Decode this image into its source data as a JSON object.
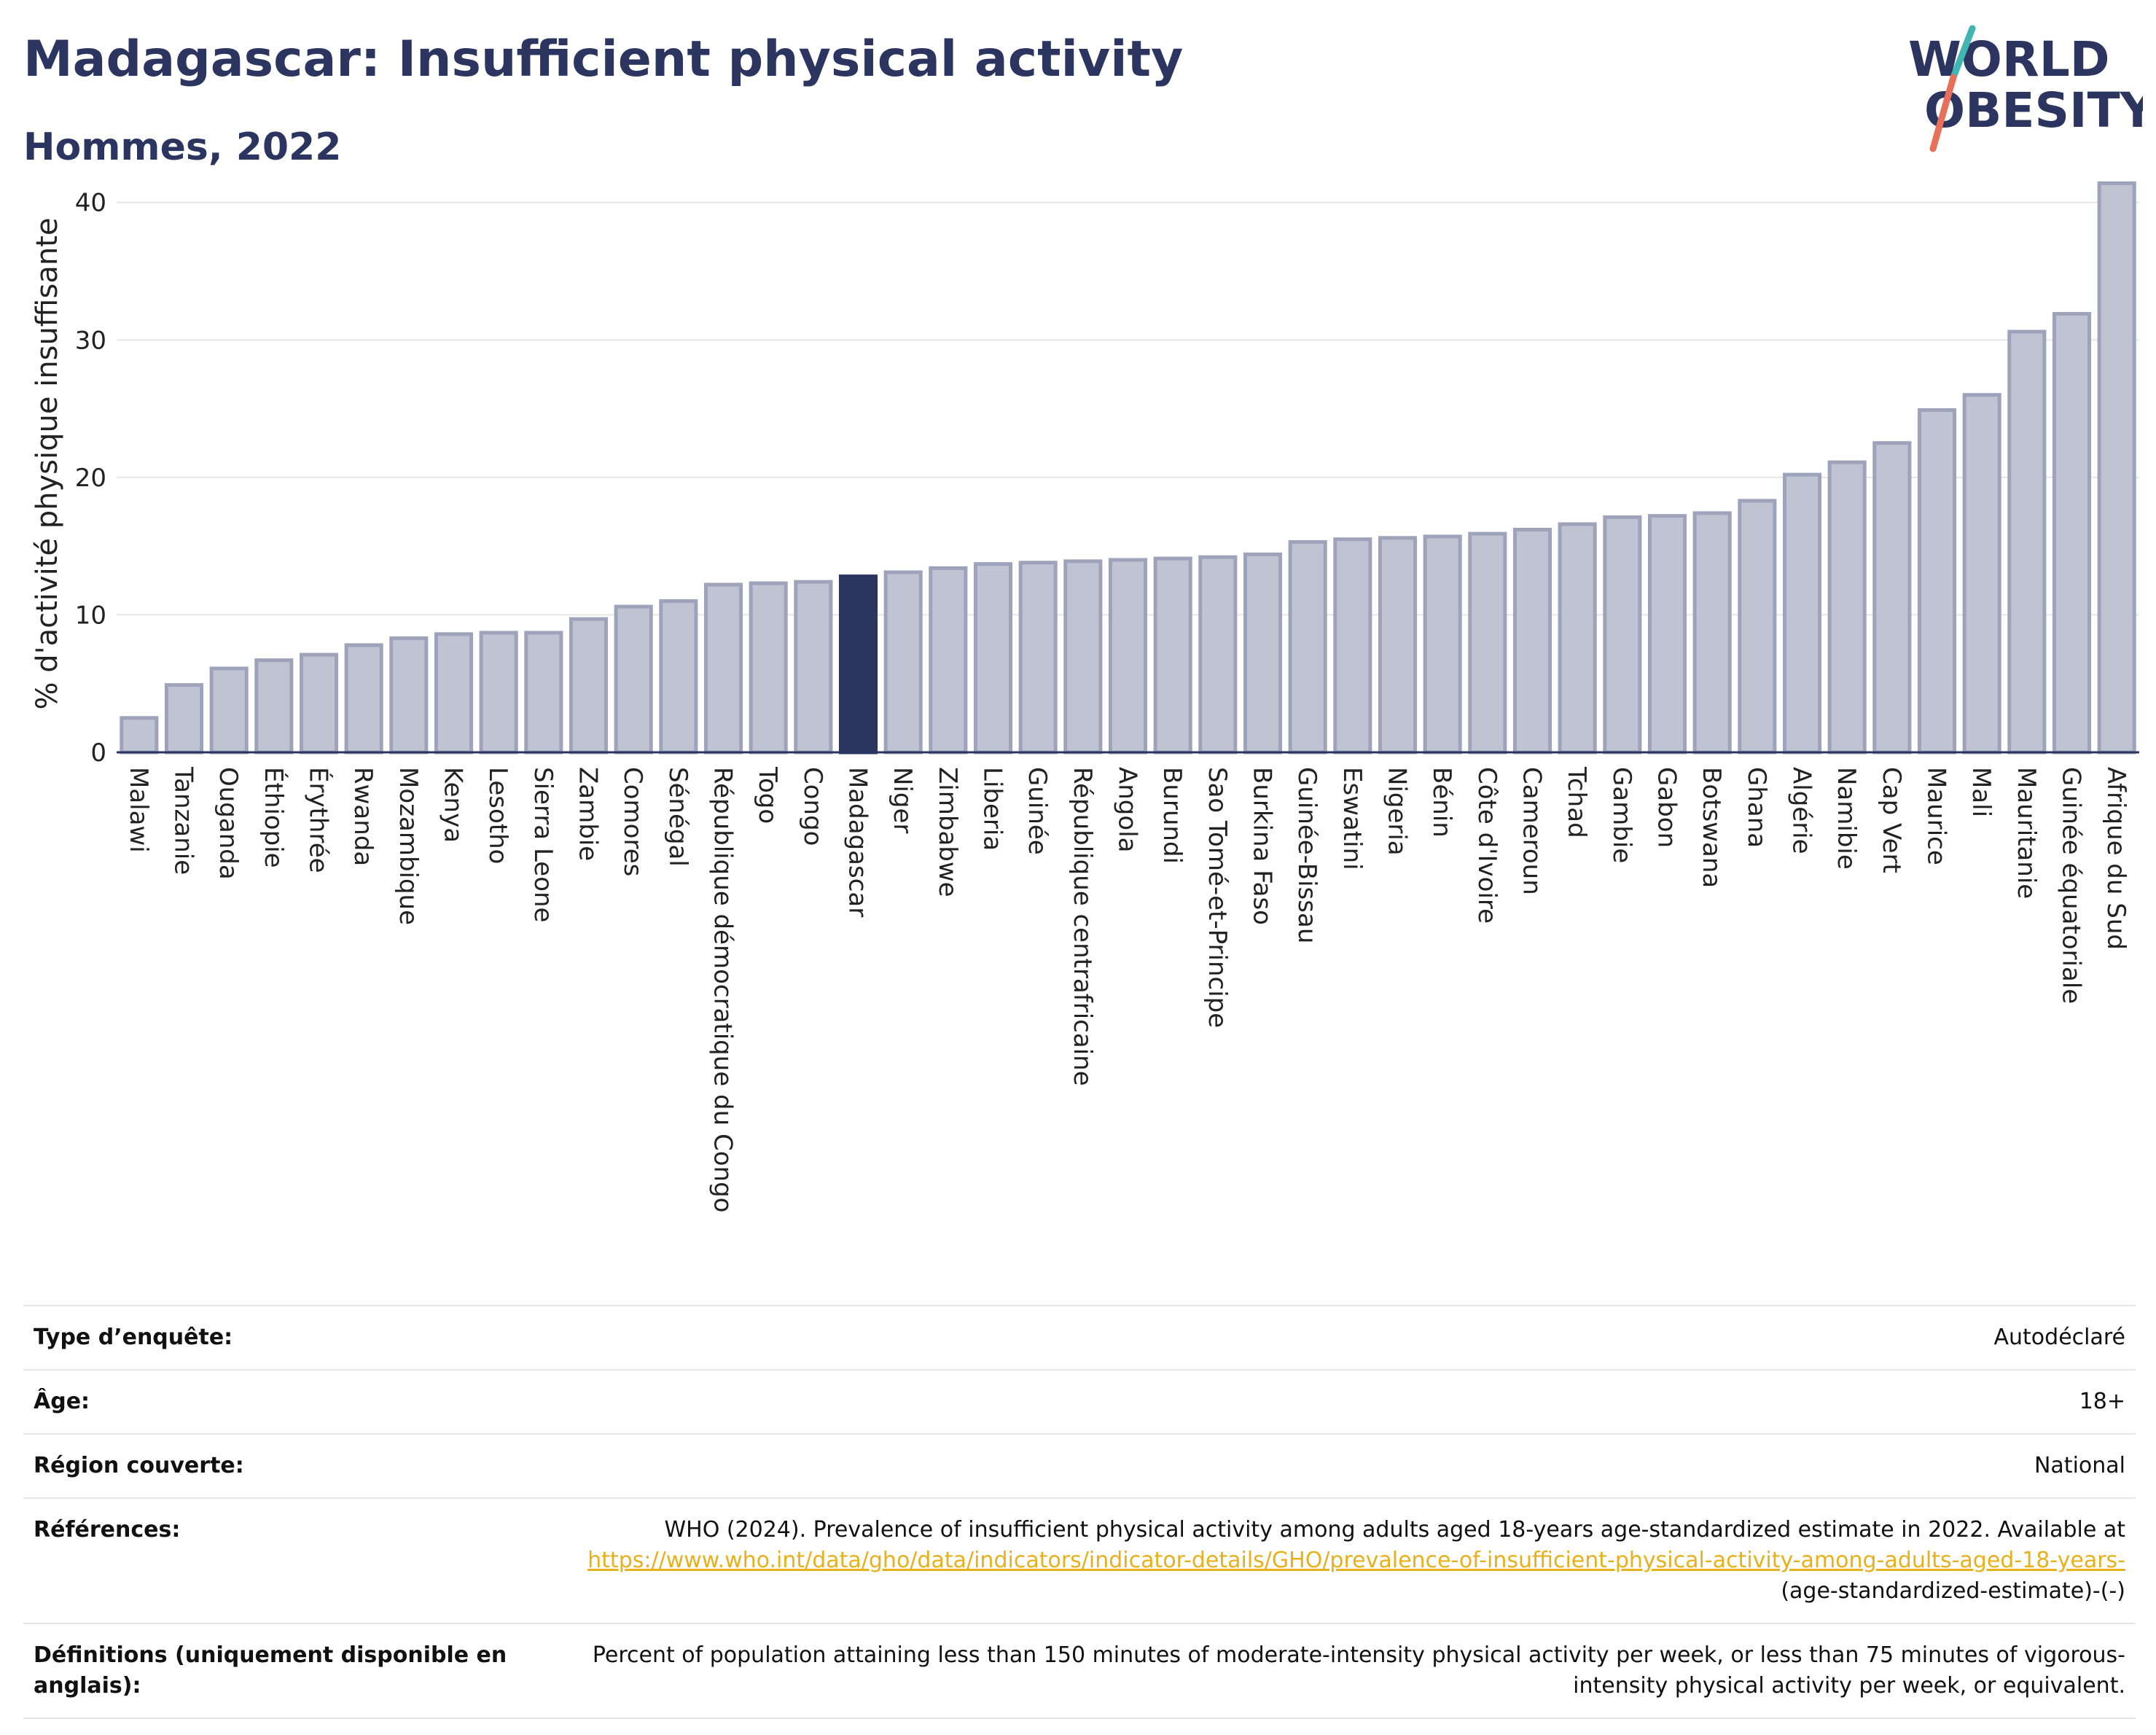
{
  "header": {
    "title": "Madagascar: Insufficient physical activity",
    "subtitle": "Hommes, 2022"
  },
  "logo": {
    "line1": "WORLD",
    "line2": "OBESITY",
    "accent_teal": "#3fb6b2",
    "accent_coral": "#e8705a"
  },
  "colors": {
    "bar": "#bfc3d2",
    "bar_border": "#9da3bb",
    "highlight": "#2b3560",
    "link": "#e8b01a"
  },
  "chart_data": {
    "type": "bar",
    "ylabel": "% d'activité physique insuffisante",
    "ylim": [
      0,
      42
    ],
    "yticks": [
      0,
      10,
      20,
      30,
      40
    ],
    "grid": true,
    "highlight": "Madagascar",
    "categories": [
      "Malawi",
      "Tanzanie",
      "Ouganda",
      "Éthiopie",
      "Érythrée",
      "Rwanda",
      "Mozambique",
      "Kenya",
      "Lesotho",
      "Sierra Leone",
      "Zambie",
      "Comores",
      "Sénégal",
      "République démocratique du Congo",
      "Togo",
      "Congo",
      "Madagascar",
      "Niger",
      "Zimbabwe",
      "Liberia",
      "Guinée",
      "République centrafricaine",
      "Angola",
      "Burundi",
      "Sao Tomé-et-Principe",
      "Burkina Faso",
      "Guinée-Bissau",
      "Eswatini",
      "Nigeria",
      "Bénin",
      "Côte d'Ivoire",
      "Cameroun",
      "Tchad",
      "Gambie",
      "Gabon",
      "Botswana",
      "Ghana",
      "Algérie",
      "Namibie",
      "Cap Vert",
      "Maurice",
      "Mali",
      "Mauritanie",
      "Guinée équatoriale",
      "Afrique du Sud"
    ],
    "values": [
      2.5,
      4.9,
      6.1,
      6.7,
      7.1,
      7.8,
      8.3,
      8.6,
      8.7,
      8.7,
      9.7,
      10.6,
      11.0,
      12.2,
      12.3,
      12.4,
      12.8,
      13.1,
      13.4,
      13.7,
      13.8,
      13.9,
      14.0,
      14.1,
      14.2,
      14.4,
      15.3,
      15.5,
      15.6,
      15.7,
      15.9,
      16.2,
      16.6,
      17.1,
      17.2,
      17.4,
      18.3,
      20.2,
      21.1,
      22.5,
      24.9,
      26.0,
      30.6,
      31.9,
      41.4
    ]
  },
  "meta": {
    "survey_type": {
      "label": "Type d’enquête:",
      "value": "Autodéclaré"
    },
    "age": {
      "label": "Âge:",
      "value": "18+"
    },
    "region": {
      "label": "Région couverte:",
      "value": "National"
    },
    "references": {
      "label": "Références:",
      "text": "WHO (2024). Prevalence of insufficient physical activity among adults aged 18-years age-standardized estimate in 2022. Available at ",
      "link": "https://www.who.int/data/gho/data/indicators/indicator-details/GHO/prevalence-of-insufficient-physical-activity-among-adults-aged-18-years-",
      "suffix": "(age-standardized-estimate)-(-)"
    },
    "definitions": {
      "label": "Définitions (uniquement disponible en anglais):",
      "value": "Percent of population attaining less than 150 minutes of moderate-intensity physical activity per week, or less than 75 minutes of vigorous-intensity physical activity per week, or equivalent."
    }
  }
}
